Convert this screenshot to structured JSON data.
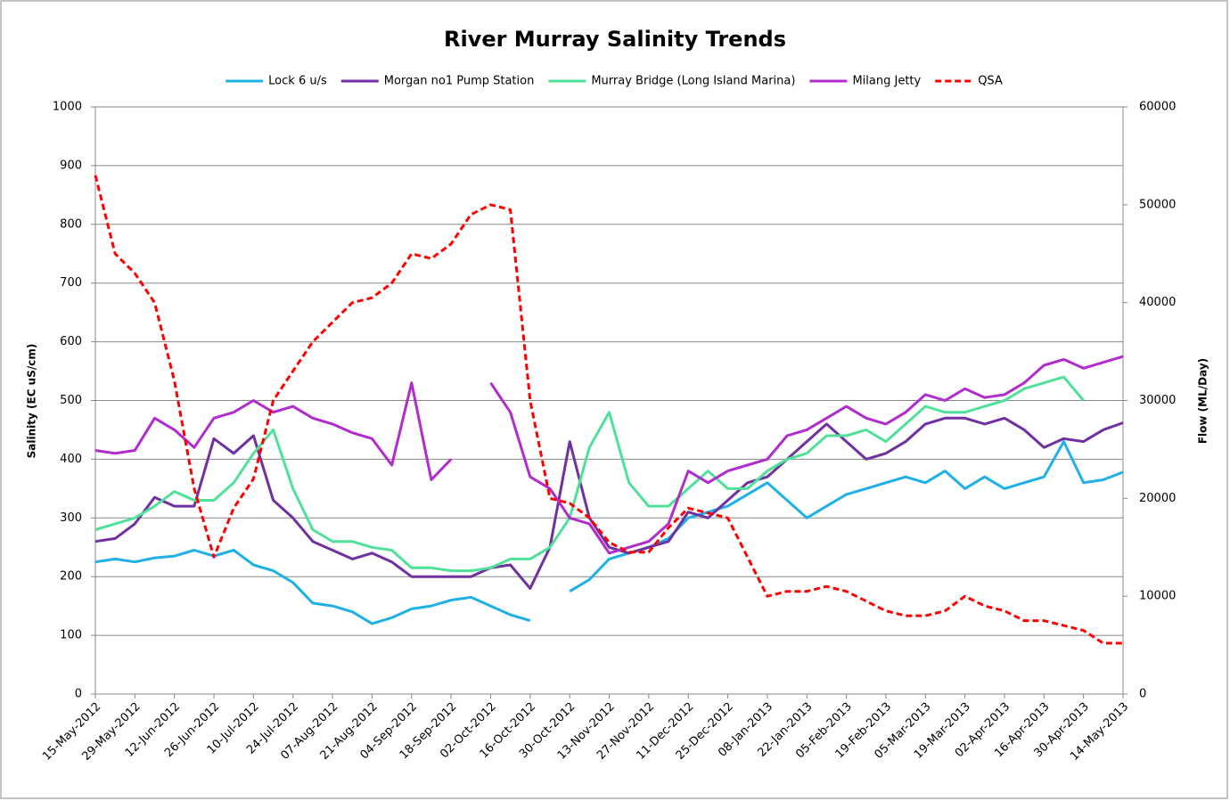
{
  "chart_data": {
    "type": "line",
    "title": "River Murray Salinity Trends",
    "y_label": "Salinity (EC uS/cm)",
    "y2_label": "Flow (ML/Day)",
    "grid": true,
    "legend": "top",
    "x": [
      "2012-05-15",
      "2012-05-22",
      "2012-05-29",
      "2012-06-05",
      "2012-06-12",
      "2012-06-19",
      "2012-06-26",
      "2012-07-03",
      "2012-07-10",
      "2012-07-17",
      "2012-07-24",
      "2012-07-31",
      "2012-08-07",
      "2012-08-14",
      "2012-08-21",
      "2012-08-28",
      "2012-09-04",
      "2012-09-11",
      "2012-09-18",
      "2012-09-25",
      "2012-10-02",
      "2012-10-09",
      "2012-10-16",
      "2012-10-23",
      "2012-10-30",
      "2012-11-06",
      "2012-11-13",
      "2012-11-20",
      "2012-11-27",
      "2012-12-04",
      "2012-12-11",
      "2012-12-18",
      "2012-12-25",
      "2013-01-01",
      "2013-01-08",
      "2013-01-15",
      "2013-01-22",
      "2013-01-29",
      "2013-02-05",
      "2013-02-12",
      "2013-02-19",
      "2013-02-26",
      "2013-03-05",
      "2013-03-12",
      "2013-03-19",
      "2013-03-26",
      "2013-04-02",
      "2013-04-09",
      "2013-04-16",
      "2013-04-23",
      "2013-04-30",
      "2013-05-07",
      "2013-05-14"
    ],
    "xlim": [
      "2012-05-15",
      "2013-05-14"
    ],
    "xticks": [
      {
        "value": "2012-05-15",
        "label": "15-May-2012"
      },
      {
        "value": "2012-05-29",
        "label": "29-May-2012"
      },
      {
        "value": "2012-06-12",
        "label": "12-Jun-2012"
      },
      {
        "value": "2012-06-26",
        "label": "26-Jun-2012"
      },
      {
        "value": "2012-07-10",
        "label": "10-Jul-2012"
      },
      {
        "value": "2012-07-24",
        "label": "24-Jul-2012"
      },
      {
        "value": "2012-08-07",
        "label": "07-Aug-2012"
      },
      {
        "value": "2012-08-21",
        "label": "21-Aug-2012"
      },
      {
        "value": "2012-09-04",
        "label": "04-Sep-2012"
      },
      {
        "value": "2012-09-18",
        "label": "18-Sep-2012"
      },
      {
        "value": "2012-10-02",
        "label": "02-Oct-2012"
      },
      {
        "value": "2012-10-16",
        "label": "16-Oct-2012"
      },
      {
        "value": "2012-10-30",
        "label": "30-Oct-2012"
      },
      {
        "value": "2012-11-13",
        "label": "13-Nov-2012"
      },
      {
        "value": "2012-11-27",
        "label": "27-Nov-2012"
      },
      {
        "value": "2012-12-11",
        "label": "11-Dec-2012"
      },
      {
        "value": "2012-12-25",
        "label": "25-Dec-2012"
      },
      {
        "value": "2013-01-08",
        "label": "08-Jan-2013"
      },
      {
        "value": "2013-01-22",
        "label": "22-Jan-2013"
      },
      {
        "value": "2013-02-05",
        "label": "05-Feb-2013"
      },
      {
        "value": "2013-02-19",
        "label": "19-Feb-2013"
      },
      {
        "value": "2013-03-05",
        "label": "05-Mar-2013"
      },
      {
        "value": "2013-03-19",
        "label": "19-Mar-2013"
      },
      {
        "value": "2013-04-02",
        "label": "02-Apr-2013"
      },
      {
        "value": "2013-04-16",
        "label": "16-Apr-2013"
      },
      {
        "value": "2013-04-30",
        "label": "30-Apr-2013"
      },
      {
        "value": "2013-05-14",
        "label": "14-May-2013"
      }
    ],
    "ylim": [
      0,
      1000
    ],
    "yticks": [
      0,
      100,
      200,
      300,
      400,
      500,
      600,
      700,
      800,
      900,
      1000
    ],
    "y2lim": [
      0,
      60000
    ],
    "y2ticks": [
      0,
      10000,
      20000,
      30000,
      40000,
      50000,
      60000
    ],
    "series": [
      {
        "name": "Lock 6 u/s",
        "color": "#1fb0e6",
        "values": [
          225,
          230,
          225,
          232,
          235,
          245,
          235,
          245,
          220,
          210,
          190,
          155,
          150,
          140,
          120,
          130,
          145,
          150,
          160,
          165,
          150,
          135,
          125,
          null,
          175,
          195,
          230,
          240,
          250,
          265,
          300,
          310,
          320,
          340,
          360,
          330,
          300,
          320,
          340,
          350,
          360,
          370,
          360,
          380,
          350,
          370,
          350,
          360,
          370,
          430,
          360,
          365,
          378
        ]
      },
      {
        "name": "Morgan no1 Pump Station",
        "color": "#7030a0",
        "values": [
          260,
          265,
          290,
          335,
          320,
          320,
          435,
          410,
          440,
          330,
          300,
          260,
          245,
          230,
          240,
          225,
          200,
          200,
          200,
          200,
          215,
          220,
          180,
          250,
          430,
          300,
          250,
          240,
          250,
          260,
          310,
          300,
          330,
          360,
          370,
          400,
          430,
          460,
          430,
          400,
          410,
          430,
          460,
          470,
          470,
          460,
          470,
          450,
          420,
          435,
          430,
          450,
          462
        ]
      },
      {
        "name": "Murray Bridge (Long Island Marina)",
        "color": "#4fe09a",
        "values": [
          280,
          290,
          300,
          320,
          345,
          330,
          330,
          360,
          410,
          450,
          350,
          280,
          260,
          260,
          250,
          245,
          215,
          215,
          210,
          210,
          215,
          230,
          230,
          250,
          300,
          420,
          480,
          360,
          320,
          320,
          350,
          380,
          350,
          350,
          380,
          400,
          410,
          440,
          440,
          450,
          430,
          460,
          490,
          480,
          480,
          490,
          500,
          520,
          530,
          540,
          500,
          null,
          null
        ]
      },
      {
        "name": "Milang Jetty",
        "color": "#b02ccc",
        "values": [
          415,
          410,
          415,
          470,
          450,
          420,
          470,
          480,
          500,
          480,
          490,
          470,
          460,
          445,
          435,
          390,
          530,
          365,
          400,
          null,
          530,
          480,
          370,
          350,
          300,
          290,
          240,
          250,
          260,
          290,
          380,
          360,
          380,
          390,
          400,
          440,
          450,
          470,
          490,
          470,
          460,
          480,
          510,
          500,
          520,
          505,
          510,
          530,
          560,
          570,
          555,
          565,
          575
        ]
      },
      {
        "name": "QSA",
        "color": "#ff0000",
        "dash": true,
        "axis": "y2",
        "values": [
          53000,
          45000,
          43000,
          40000,
          32000,
          21000,
          14000,
          19000,
          22000,
          30000,
          33000,
          36000,
          38000,
          40000,
          40500,
          42000,
          45000,
          44500,
          46000,
          49000,
          50000,
          49500,
          30000,
          20000,
          19500,
          18000,
          15500,
          14500,
          14500,
          17000,
          19000,
          18500,
          18000,
          14000,
          10000,
          10500,
          10500,
          11000,
          10500,
          9500,
          8500,
          8000,
          8000,
          8500,
          10000,
          9000,
          8500,
          7500,
          7500,
          7000,
          6500,
          5200,
          5200
        ]
      }
    ]
  }
}
